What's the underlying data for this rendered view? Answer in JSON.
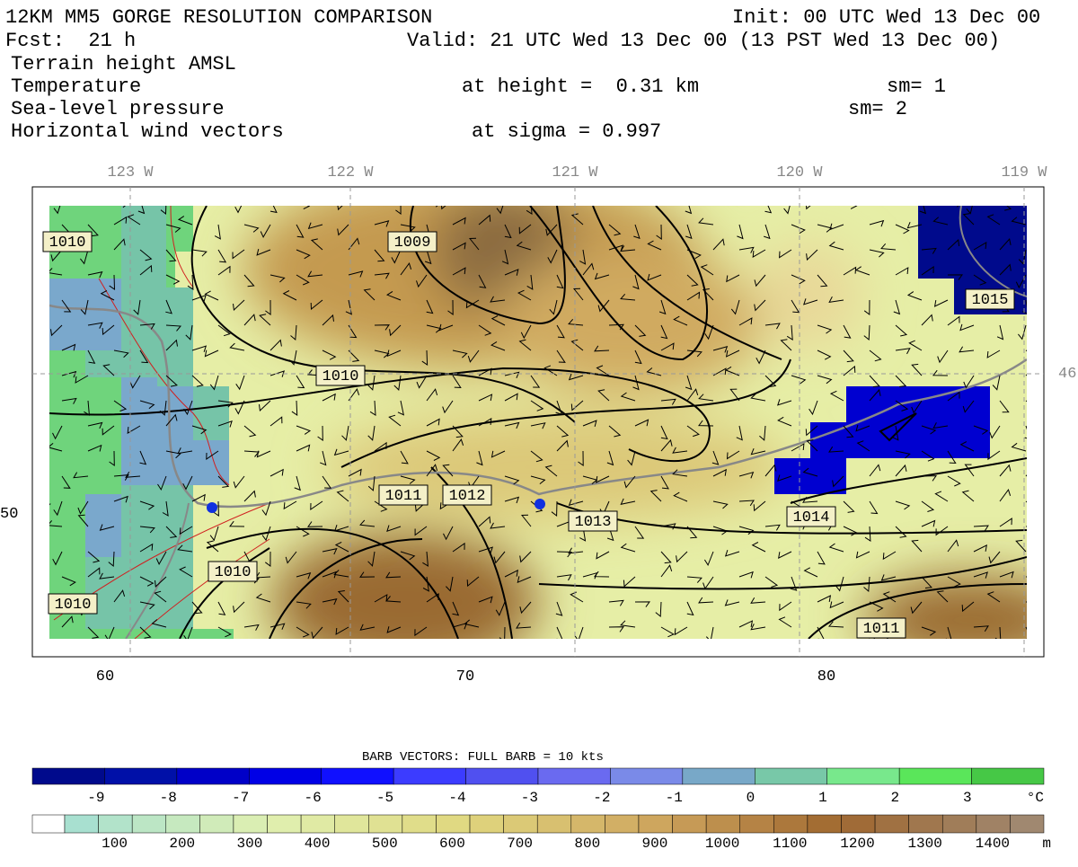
{
  "header": {
    "title": "12KM MM5 GORGE RESOLUTION COMPARISON",
    "init": "Init: 00 UTC Wed 13 Dec 00",
    "fcst": "Fcst:  21 h",
    "valid": "Valid: 21 UTC Wed 13 Dec 00 (13 PST Wed 13 Dec 00)"
  },
  "fields": [
    {
      "name": "Terrain height AMSL"
    },
    {
      "name": "Temperature",
      "detail": "at height =  0.31 km",
      "sm": "sm= 1"
    },
    {
      "name": "Sea-level pressure",
      "sm": "sm= 2"
    },
    {
      "name": "Horizontal wind vectors",
      "detail": "at sigma = 0.997"
    }
  ],
  "map": {
    "lon_labels": [
      "123 W",
      "122 W",
      "121 W",
      "120 W",
      "119 W"
    ],
    "lat_labels": [
      "46",
      "50"
    ],
    "x_labels": [
      "60",
      "70",
      "80"
    ],
    "contour_labels": [
      "1010",
      "1009",
      "1010",
      "1011",
      "1012",
      "1013",
      "1014",
      "1010",
      "1010",
      "1011",
      "1015"
    ]
  },
  "barb_note": "BARB VECTORS:  FULL BARB = 10 kts",
  "temperature_legend": {
    "labels": [
      "-9",
      "-8",
      "-7",
      "-6",
      "-5",
      "-4",
      "-3",
      "-2",
      "-1",
      "0",
      "1",
      "2",
      "3"
    ],
    "unit": "°C",
    "colors": [
      "#000a8c",
      "#0010a8",
      "#0000c8",
      "#0000e6",
      "#1010ff",
      "#3c3cff",
      "#5050f0",
      "#6a6af0",
      "#7a8ae8",
      "#78a8c8",
      "#78c8a8",
      "#78e88c",
      "#5ae65a",
      "#46c846"
    ]
  },
  "terrain_legend": {
    "labels": [
      100,
      200,
      300,
      400,
      500,
      600,
      700,
      800,
      900,
      1000,
      1100,
      1200,
      1300,
      1400
    ],
    "unit": "m"
  }
}
